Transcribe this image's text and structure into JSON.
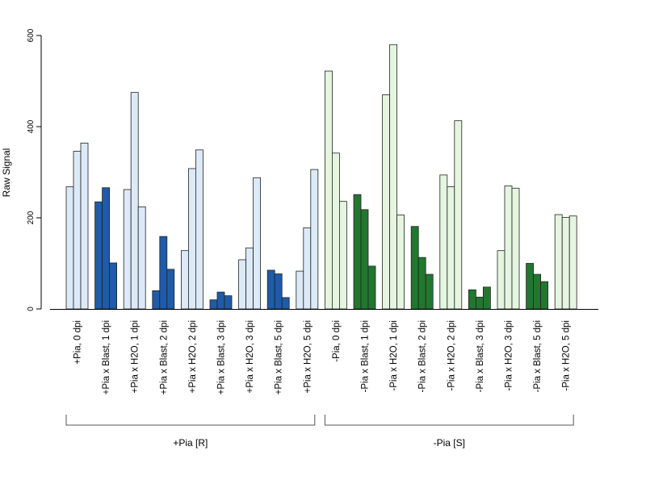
{
  "chart_data": {
    "type": "bar",
    "title": "",
    "xlabel": "",
    "ylabel": "Raw Signal",
    "ylim": [
      0,
      600
    ],
    "yticks": [
      "0",
      "200",
      "400",
      "600"
    ],
    "grid": false,
    "legend": "none",
    "categories": [
      "+Pia, 0 dpi",
      "+Pia x Blast, 1 dpi",
      "+Pia x H2O, 1 dpi",
      "+Pia x Blast, 2 dpi",
      "+Pia x H2O, 2 dpi",
      "+Pia x Blast, 3 dpi",
      "+Pia x H2O, 3 dpi",
      "+Pia x Blast, 5 dpi",
      "+Pia x H2O, 5 dpi",
      "-Pia, 0 dpi",
      "-Pia x Blast, 1 dpi",
      "-Pia x H2O, 1 dpi",
      "-Pia x Blast, 2 dpi",
      "-Pia x H2O, 2 dpi",
      "-Pia x Blast, 3 dpi",
      "-Pia x H2O, 3 dpi",
      "-Pia x Blast, 5 dpi",
      "-Pia x H2O, 5 dpi"
    ],
    "replicates": [
      [
        268,
        346,
        364
      ],
      [
        235,
        266,
        101
      ],
      [
        262,
        475,
        224
      ],
      [
        40,
        159,
        87
      ],
      [
        128,
        308,
        349
      ],
      [
        20,
        37,
        29
      ],
      [
        108,
        134,
        288
      ],
      [
        85,
        77,
        25
      ],
      [
        83,
        178,
        306
      ],
      [
        522,
        342,
        236
      ],
      [
        251,
        218,
        94
      ],
      [
        470,
        580,
        206
      ],
      [
        181,
        113,
        76
      ],
      [
        294,
        268,
        413
      ],
      [
        42,
        26,
        48
      ],
      [
        128,
        270,
        265
      ],
      [
        100,
        76,
        60
      ],
      [
        207,
        201,
        204
      ]
    ],
    "bar_colors": [
      "#dce9f7",
      "#1f5ba8",
      "#dce9f7",
      "#1f5ba8",
      "#dce9f7",
      "#1f5ba8",
      "#dce9f7",
      "#1f5ba8",
      "#dce9f7",
      "#e5f5e0",
      "#22772f",
      "#e5f5e0",
      "#22772f",
      "#e5f5e0",
      "#22772f",
      "#e5f5e0",
      "#22772f",
      "#e5f5e0"
    ],
    "groups": [
      {
        "label": "+Pia [R]",
        "from": 0,
        "to": 8
      },
      {
        "label": "-Pia [S]",
        "from": 9,
        "to": 17
      }
    ]
  }
}
